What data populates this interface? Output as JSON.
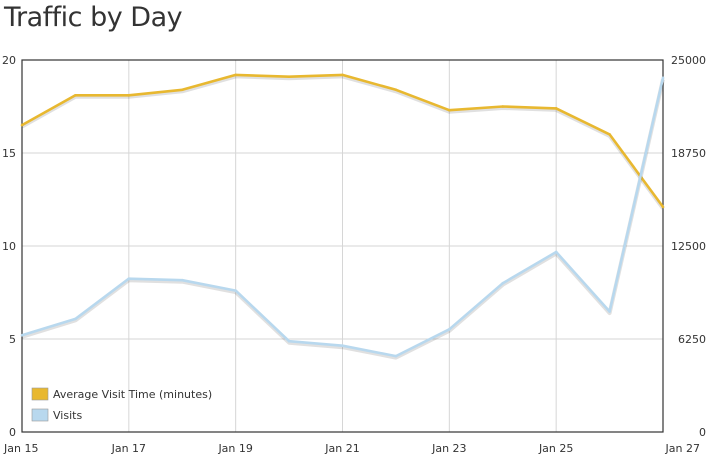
{
  "title": "Traffic by Day",
  "chart_data": {
    "type": "line",
    "title": "Traffic by Day",
    "x_tick_labels": [
      "Jan 15",
      "Jan 17",
      "Jan 19",
      "Jan 21",
      "Jan 23",
      "Jan 25",
      "Jan 27"
    ],
    "x_dates": [
      "Jan 15",
      "Jan 16",
      "Jan 17",
      "Jan 18",
      "Jan 19",
      "Jan 20",
      "Jan 21",
      "Jan 22",
      "Jan 23",
      "Jan 24",
      "Jan 25",
      "Jan 26",
      "Jan 27"
    ],
    "y_left": {
      "ylim": [
        0,
        20
      ],
      "ticks": [
        "0",
        "5",
        "10",
        "15",
        "20"
      ]
    },
    "y_right": {
      "ylim": [
        0,
        25000
      ],
      "ticks": [
        "0",
        "6250",
        "12500",
        "18750",
        "25000"
      ]
    },
    "series": [
      {
        "name": "Average Visit Time (minutes)",
        "axis": "left",
        "color": "#e8b830",
        "values": [
          16.5,
          18.1,
          18.1,
          18.4,
          19.2,
          19.1,
          19.2,
          18.4,
          17.3,
          17.5,
          17.4,
          16.0,
          12.1
        ]
      },
      {
        "name": "Visits",
        "axis": "right",
        "color": "#b8d8ee",
        "values": [
          6500,
          7600,
          10300,
          10200,
          9500,
          6100,
          5800,
          5100,
          6900,
          10000,
          12100,
          8100,
          23800
        ]
      }
    ],
    "grid": true,
    "legend": "bottom-left"
  }
}
